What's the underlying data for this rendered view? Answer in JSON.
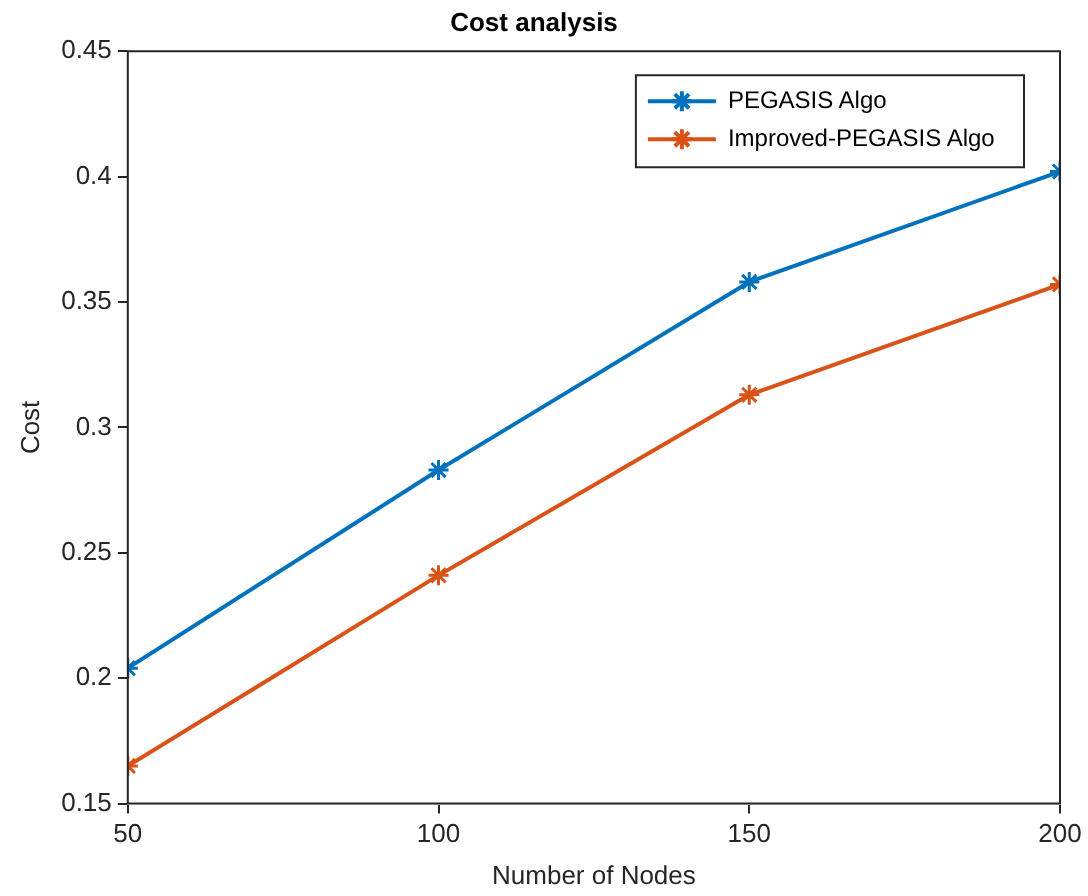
{
  "chart_data": {
    "type": "line",
    "title": "Cost analysis",
    "xlabel": "Number of Nodes",
    "ylabel": "Cost",
    "x": [
      50,
      100,
      150,
      200
    ],
    "series": [
      {
        "name": "PEGASIS Algo",
        "color": "#0072bd",
        "values": [
          0.204,
          0.283,
          0.358,
          0.402
        ]
      },
      {
        "name": "Improved-PEGASIS Algo",
        "color": "#d95319",
        "values": [
          0.165,
          0.241,
          0.313,
          0.357
        ]
      }
    ],
    "xlim": [
      50,
      200
    ],
    "xticks": [
      50,
      100,
      150,
      200
    ],
    "ylim": [
      0.15,
      0.45
    ],
    "yticks": [
      0.15,
      0.2,
      0.25,
      0.3,
      0.35,
      0.4,
      0.45
    ],
    "grid": false,
    "legend": "top right",
    "marker": "cross",
    "line_style": "solid"
  }
}
